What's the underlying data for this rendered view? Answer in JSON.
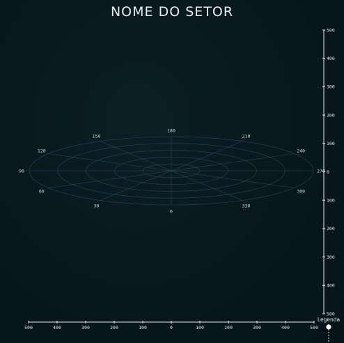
{
  "title": "NOME DO SETOR",
  "legend": {
    "label": "Legenda"
  },
  "colors": {
    "background": "#07171c",
    "grid": "#2c5058",
    "axis": "#e8eef0",
    "text": "#e6eef0"
  },
  "chart_data": {
    "type": "polar-grid",
    "title": "NOME DO SETOR",
    "rings": 5,
    "angle_labels": [
      "0",
      "30",
      "60",
      "90",
      "120",
      "150",
      "180",
      "210",
      "240",
      "270",
      "300",
      "330"
    ],
    "x_axis": {
      "ticks": [
        "500",
        "400",
        "300",
        "200",
        "100",
        "0",
        "100",
        "200",
        "300",
        "400",
        "500"
      ],
      "range": [
        -500,
        500
      ]
    },
    "y_axis": {
      "ticks": [
        "500",
        "400",
        "300",
        "200",
        "100",
        "0",
        "100",
        "200",
        "300",
        "400",
        "500"
      ],
      "range": [
        -500,
        500
      ]
    },
    "grid": true,
    "legend_position": "bottom-right"
  }
}
